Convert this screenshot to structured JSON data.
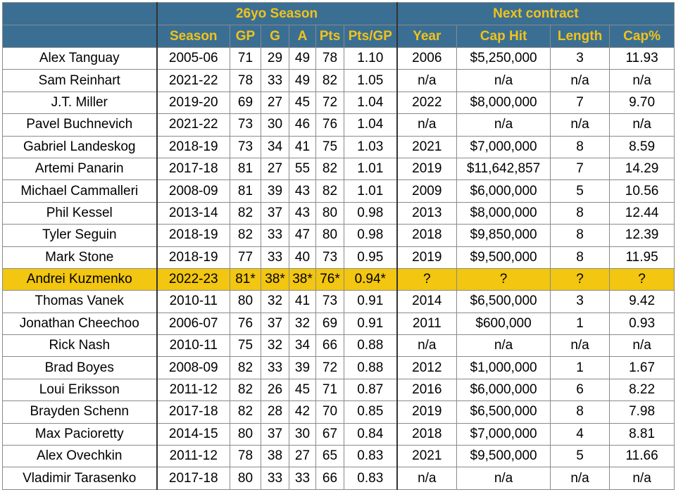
{
  "header": {
    "group_season": "26yo Season",
    "group_contract": "Next contract",
    "columns": [
      "Season",
      "GP",
      "G",
      "A",
      "Pts",
      "Pts/GP",
      "Year",
      "Cap Hit",
      "Length",
      "Cap%"
    ]
  },
  "rows": [
    {
      "name": "Alex Tanguay",
      "season": "2005-06",
      "gp": "71",
      "g": "29",
      "a": "49",
      "pts": "78",
      "ptsgp": "1.10",
      "year": "2006",
      "caphit": "$5,250,000",
      "length": "3",
      "cap": "11.93"
    },
    {
      "name": "Sam Reinhart",
      "season": "2021-22",
      "gp": "78",
      "g": "33",
      "a": "49",
      "pts": "82",
      "ptsgp": "1.05",
      "year": "n/a",
      "caphit": "n/a",
      "length": "n/a",
      "cap": "n/a"
    },
    {
      "name": "J.T. Miller",
      "season": "2019-20",
      "gp": "69",
      "g": "27",
      "a": "45",
      "pts": "72",
      "ptsgp": "1.04",
      "year": "2022",
      "caphit": "$8,000,000",
      "length": "7",
      "cap": "9.70"
    },
    {
      "name": "Pavel Buchnevich",
      "season": "2021-22",
      "gp": "73",
      "g": "30",
      "a": "46",
      "pts": "76",
      "ptsgp": "1.04",
      "year": "n/a",
      "caphit": "n/a",
      "length": "n/a",
      "cap": "n/a"
    },
    {
      "name": "Gabriel Landeskog",
      "season": "2018-19",
      "gp": "73",
      "g": "34",
      "a": "41",
      "pts": "75",
      "ptsgp": "1.03",
      "year": "2021",
      "caphit": "$7,000,000",
      "length": "8",
      "cap": "8.59"
    },
    {
      "name": "Artemi Panarin",
      "season": "2017-18",
      "gp": "81",
      "g": "27",
      "a": "55",
      "pts": "82",
      "ptsgp": "1.01",
      "year": "2019",
      "caphit": "$11,642,857",
      "length": "7",
      "cap": "14.29"
    },
    {
      "name": "Michael Cammalleri",
      "season": "2008-09",
      "gp": "81",
      "g": "39",
      "a": "43",
      "pts": "82",
      "ptsgp": "1.01",
      "year": "2009",
      "caphit": "$6,000,000",
      "length": "5",
      "cap": "10.56"
    },
    {
      "name": "Phil Kessel",
      "season": "2013-14",
      "gp": "82",
      "g": "37",
      "a": "43",
      "pts": "80",
      "ptsgp": "0.98",
      "year": "2013",
      "caphit": "$8,000,000",
      "length": "8",
      "cap": "12.44"
    },
    {
      "name": "Tyler Seguin",
      "season": "2018-19",
      "gp": "82",
      "g": "33",
      "a": "47",
      "pts": "80",
      "ptsgp": "0.98",
      "year": "2018",
      "caphit": "$9,850,000",
      "length": "8",
      "cap": "12.39"
    },
    {
      "name": "Mark Stone",
      "season": "2018-19",
      "gp": "77",
      "g": "33",
      "a": "40",
      "pts": "73",
      "ptsgp": "0.95",
      "year": "2019",
      "caphit": "$9,500,000",
      "length": "8",
      "cap": "11.95"
    },
    {
      "name": "Andrei Kuzmenko",
      "season": "2022-23",
      "gp": "81*",
      "g": "38*",
      "a": "38*",
      "pts": "76*",
      "ptsgp": "0.94*",
      "year": "?",
      "caphit": "?",
      "length": "?",
      "cap": "?",
      "highlight": true
    },
    {
      "name": "Thomas Vanek",
      "season": "2010-11",
      "gp": "80",
      "g": "32",
      "a": "41",
      "pts": "73",
      "ptsgp": "0.91",
      "year": "2014",
      "caphit": "$6,500,000",
      "length": "3",
      "cap": "9.42"
    },
    {
      "name": "Jonathan Cheechoo",
      "season": "2006-07",
      "gp": "76",
      "g": "37",
      "a": "32",
      "pts": "69",
      "ptsgp": "0.91",
      "year": "2011",
      "caphit": "$600,000",
      "length": "1",
      "cap": "0.93"
    },
    {
      "name": "Rick Nash",
      "season": "2010-11",
      "gp": "75",
      "g": "32",
      "a": "34",
      "pts": "66",
      "ptsgp": "0.88",
      "year": "n/a",
      "caphit": "n/a",
      "length": "n/a",
      "cap": "n/a"
    },
    {
      "name": "Brad Boyes",
      "season": "2008-09",
      "gp": "82",
      "g": "33",
      "a": "39",
      "pts": "72",
      "ptsgp": "0.88",
      "year": "2012",
      "caphit": "$1,000,000",
      "length": "1",
      "cap": "1.67"
    },
    {
      "name": "Loui Eriksson",
      "season": "2011-12",
      "gp": "82",
      "g": "26",
      "a": "45",
      "pts": "71",
      "ptsgp": "0.87",
      "year": "2016",
      "caphit": "$6,000,000",
      "length": "6",
      "cap": "8.22"
    },
    {
      "name": "Brayden Schenn",
      "season": "2017-18",
      "gp": "82",
      "g": "28",
      "a": "42",
      "pts": "70",
      "ptsgp": "0.85",
      "year": "2019",
      "caphit": "$6,500,000",
      "length": "8",
      "cap": "7.98"
    },
    {
      "name": "Max Pacioretty",
      "season": "2014-15",
      "gp": "80",
      "g": "37",
      "a": "30",
      "pts": "67",
      "ptsgp": "0.84",
      "year": "2018",
      "caphit": "$7,000,000",
      "length": "4",
      "cap": "8.81"
    },
    {
      "name": "Alex Ovechkin",
      "season": "2011-12",
      "gp": "78",
      "g": "38",
      "a": "27",
      "pts": "65",
      "ptsgp": "0.83",
      "year": "2021",
      "caphit": "$9,500,000",
      "length": "5",
      "cap": "11.66"
    },
    {
      "name": "Vladimir Tarasenko",
      "season": "2017-18",
      "gp": "80",
      "g": "33",
      "a": "33",
      "pts": "66",
      "ptsgp": "0.83",
      "year": "n/a",
      "caphit": "n/a",
      "length": "n/a",
      "cap": "n/a"
    }
  ],
  "colors": {
    "header_bg": "#3a6f93",
    "header_text": "#f2c21a",
    "highlight_row": "#f2c611"
  }
}
